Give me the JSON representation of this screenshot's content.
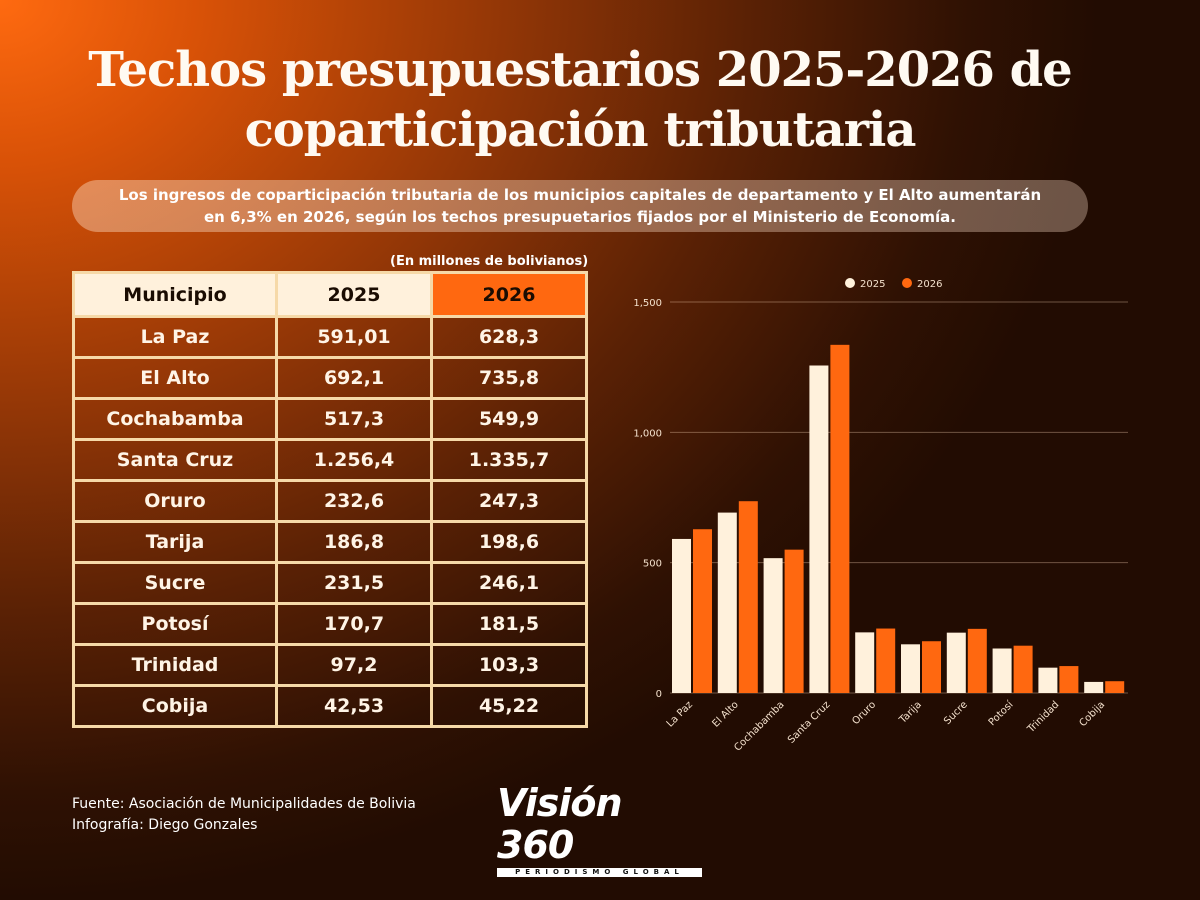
{
  "title": {
    "line1": "Techos  presupuestarios 2025-2026 de",
    "line2": "coparticipación tributaria"
  },
  "subtitle": {
    "line1": "Los ingresos de coparticipación tributaria de los municipios capitales de departamento y El Alto aumentarán",
    "line2": "en 6,3% en 2026, según los techos presupuetarios fijados por el Ministerio de Economía."
  },
  "table": {
    "unit_note": "(En millones de bolivianos)",
    "headers": [
      "Municipio",
      "2025",
      "2026"
    ],
    "rows": [
      [
        "La Paz",
        "591,01",
        "628,3"
      ],
      [
        "El Alto",
        "692,1",
        "735,8"
      ],
      [
        "Cochabamba",
        "517,3",
        "549,9"
      ],
      [
        "Santa Cruz",
        "1.256,4",
        "1.335,7"
      ],
      [
        "Oruro",
        "232,6",
        "247,3"
      ],
      [
        "Tarija",
        "186,8",
        "198,6"
      ],
      [
        "Sucre",
        "231,5",
        "246,1"
      ],
      [
        "Potosí",
        "170,7",
        "181,5"
      ],
      [
        "Trinidad",
        "97,2",
        "103,3"
      ],
      [
        "Cobija",
        "42,53",
        "45,22"
      ]
    ]
  },
  "chart_data": {
    "type": "bar",
    "categories": [
      "La Paz",
      "El Alto",
      "Cochabamba",
      "Santa Cruz",
      "Oruro",
      "Tarija",
      "Sucre",
      "Potosí",
      "Trinidad",
      "Cobija"
    ],
    "series": [
      {
        "name": "2025",
        "values": [
          591.01,
          692.1,
          517.3,
          1256.4,
          232.6,
          186.8,
          231.5,
          170.7,
          97.2,
          42.53
        ],
        "color": "#fff1dc"
      },
      {
        "name": "2026",
        "values": [
          628.3,
          735.8,
          549.9,
          1335.7,
          247.3,
          198.6,
          246.1,
          181.5,
          103.3,
          45.22
        ],
        "color": "#ff6810"
      }
    ],
    "yticks": [
      "0",
      "500",
      "1,000",
      "1,500"
    ],
    "ylim": [
      0,
      1500
    ],
    "grid": true,
    "legend": "top-center",
    "title": "",
    "xlabel": "",
    "ylabel": ""
  },
  "footer": {
    "source": "Fuente: Asociación de Municipalidades de Bolivia",
    "credit": "Infografía: Diego Gonzales"
  },
  "logo": {
    "name": "Visión 360",
    "tagline": "PERIODISMO GLOBAL"
  },
  "colors": {
    "accent": "#ff6810",
    "cream": "#fff1dc",
    "table_border": "#f6d9a8"
  }
}
